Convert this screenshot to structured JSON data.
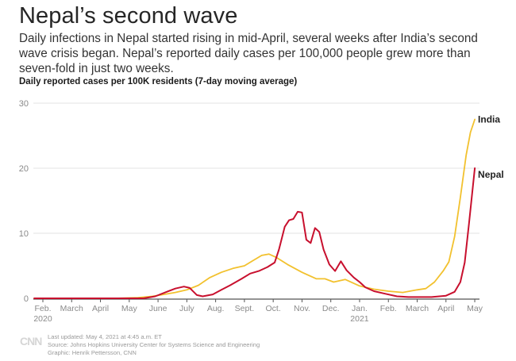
{
  "header": {
    "title": "Nepal’s second wave",
    "subtitle": "Daily infections in Nepal started rising in mid-April, several weeks after India’s second wave crisis began. Nepal’s reported daily cases per 100,000 people grew more than seven-fold in just two weeks.",
    "chart_label": "Daily reported cases per 100K residents (7-day moving average)"
  },
  "footer": {
    "logo": "CNN",
    "updated": "Last updated: May 4, 2021 at 4:45 a.m. ET",
    "source": "Source: Johns Hopkins University Center for Systems Science and Engineering",
    "graphic": "Graphic: Henrik Pettersson, CNN"
  },
  "colors": {
    "india": "#f2c12e",
    "nepal": "#c8102e",
    "grid": "#e3e3e3",
    "axis": "#555555",
    "tick_text": "#8a8a8a"
  },
  "chart_data": {
    "type": "line",
    "title": "Nepal’s second wave",
    "xlabel": "",
    "ylabel": "Daily reported cases per 100K residents (7-day moving average)",
    "ylim": [
      0,
      30
    ],
    "yticks": [
      0,
      10,
      20,
      30
    ],
    "grid": true,
    "legend": "direct labels at line ends (right)",
    "x_unit": "months since Feb. 1, 2020",
    "xlim": [
      -0.3,
      15.1
    ],
    "xticks": [
      {
        "x": 0,
        "label": "Feb.",
        "sublabel": "2020"
      },
      {
        "x": 1,
        "label": "March"
      },
      {
        "x": 2,
        "label": "April"
      },
      {
        "x": 3,
        "label": "May"
      },
      {
        "x": 4,
        "label": "June"
      },
      {
        "x": 5,
        "label": "July"
      },
      {
        "x": 6,
        "label": "Aug."
      },
      {
        "x": 7,
        "label": "Sept."
      },
      {
        "x": 8,
        "label": "Oct."
      },
      {
        "x": 9,
        "label": "Nov."
      },
      {
        "x": 10,
        "label": "Dec."
      },
      {
        "x": 11,
        "label": "Jan.",
        "sublabel": "2021"
      },
      {
        "x": 12,
        "label": "Feb."
      },
      {
        "x": 13,
        "label": "March"
      },
      {
        "x": 14,
        "label": "April"
      },
      {
        "x": 15,
        "label": "May"
      }
    ],
    "series": [
      {
        "name": "India",
        "x": [
          -0.3,
          2.5,
          3.3,
          3.8,
          4.2,
          4.6,
          5.0,
          5.4,
          5.8,
          6.2,
          6.6,
          7.0,
          7.3,
          7.6,
          7.85,
          8.1,
          8.5,
          9.0,
          9.5,
          9.8,
          10.1,
          10.5,
          11.0,
          11.5,
          12.0,
          12.5,
          13.0,
          13.3,
          13.6,
          13.9,
          14.1,
          14.3,
          14.5,
          14.7,
          14.85,
          15.0
        ],
        "values": [
          0,
          0,
          0.1,
          0.3,
          0.6,
          0.9,
          1.3,
          2.0,
          3.2,
          4.0,
          4.6,
          5.0,
          5.8,
          6.6,
          6.8,
          6.3,
          5.2,
          4.0,
          3.0,
          3.0,
          2.5,
          2.9,
          1.9,
          1.4,
          1.1,
          0.9,
          1.3,
          1.5,
          2.5,
          4.2,
          5.6,
          9.5,
          15.5,
          22.0,
          25.5,
          27.5
        ]
      },
      {
        "name": "Nepal",
        "x": [
          -0.3,
          3.5,
          3.9,
          4.3,
          4.6,
          4.9,
          5.1,
          5.35,
          5.55,
          5.9,
          6.2,
          6.5,
          6.9,
          7.2,
          7.5,
          7.8,
          8.05,
          8.2,
          8.4,
          8.55,
          8.7,
          8.85,
          9.0,
          9.15,
          9.3,
          9.45,
          9.6,
          9.75,
          9.95,
          10.15,
          10.35,
          10.55,
          10.8,
          11.0,
          11.2,
          11.5,
          11.9,
          12.3,
          12.7,
          13.0,
          13.5,
          14.0,
          14.3,
          14.5,
          14.65,
          14.8,
          15.0
        ],
        "values": [
          0,
          0,
          0.3,
          1.0,
          1.5,
          1.8,
          1.6,
          0.5,
          0.3,
          0.6,
          1.3,
          2.0,
          3.0,
          3.8,
          4.2,
          4.8,
          5.5,
          7.5,
          11.0,
          12.0,
          12.2,
          13.3,
          13.2,
          9.0,
          8.5,
          10.8,
          10.2,
          7.5,
          5.2,
          4.2,
          5.7,
          4.3,
          3.2,
          2.5,
          1.7,
          1.1,
          0.7,
          0.3,
          0.2,
          0.2,
          0.2,
          0.4,
          1.0,
          2.5,
          5.5,
          11.5,
          20.0
        ]
      }
    ],
    "end_labels": [
      "India",
      "Nepal"
    ]
  }
}
